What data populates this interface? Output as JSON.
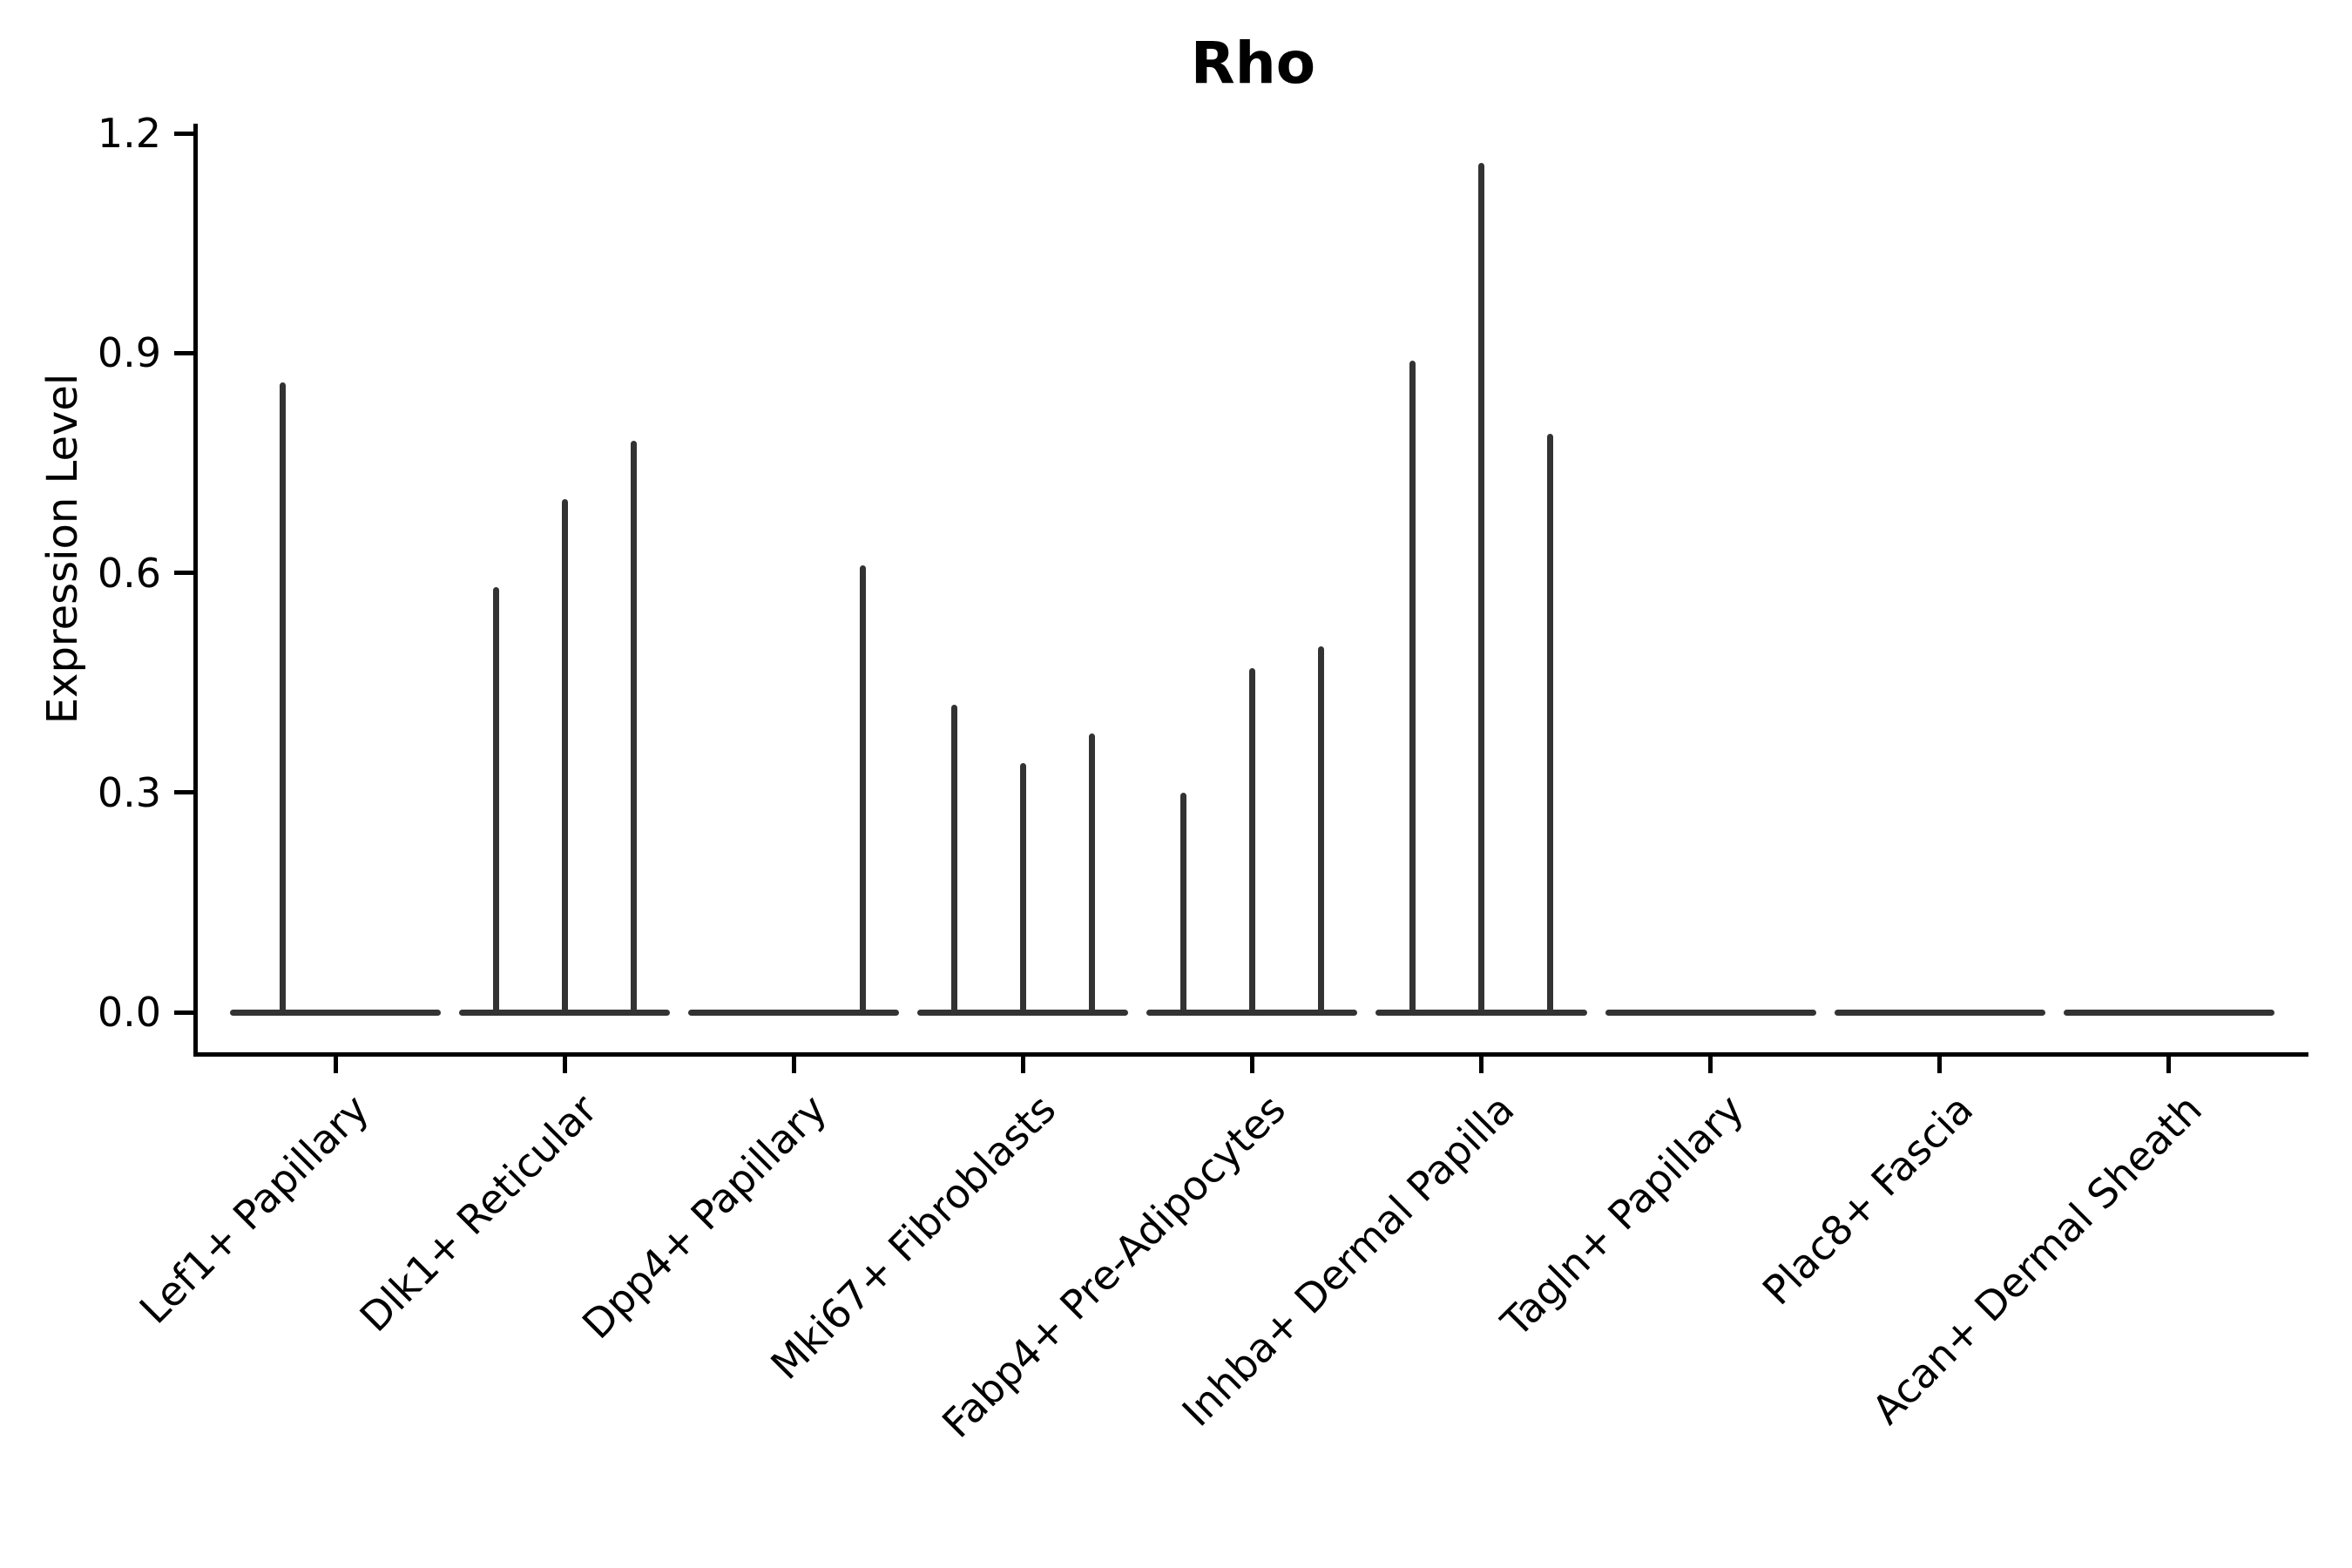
{
  "title": "Rho",
  "chart_data": {
    "type": "violin",
    "title": "Rho",
    "xlabel": "",
    "ylabel": "Expression Level",
    "ylim": [
      0.0,
      1.2
    ],
    "yticks": [
      0.0,
      0.3,
      0.6,
      0.9,
      1.2
    ],
    "ytick_labels": [
      "0.0",
      "0.3",
      "0.6",
      "0.9",
      "1.2"
    ],
    "grid": false,
    "legend_position": "none",
    "violin_color": "#333333",
    "axis_color": "#000000",
    "categories": [
      "Lef1+ Papillary",
      "Dlk1+ Reticular",
      "Dpp4+ Papillary",
      "Mki67+ Fibroblasts",
      "Fabp4+ Pre-Adipocytes",
      "Inhba+ Dermal Papilla",
      "Tagln+ Papillary",
      "Plac8+ Fascia",
      "Acan+ Dermal Sheath"
    ],
    "baseline_halfwidth": 0.46,
    "groups": [
      {
        "category": "Lef1+ Papillary",
        "spikes": [
          {
            "offset": -0.23,
            "max": 0.86
          }
        ]
      },
      {
        "category": "Dlk1+ Reticular",
        "spikes": [
          {
            "offset": -0.3,
            "max": 0.58
          },
          {
            "offset": 0.0,
            "max": 0.7
          },
          {
            "offset": 0.3,
            "max": 0.78
          }
        ]
      },
      {
        "category": "Dpp4+ Papillary",
        "spikes": [
          {
            "offset": 0.3,
            "max": 0.61
          }
        ]
      },
      {
        "category": "Mki67+ Fibroblasts",
        "spikes": [
          {
            "offset": -0.3,
            "max": 0.42
          },
          {
            "offset": 0.0,
            "max": 0.34
          },
          {
            "offset": 0.3,
            "max": 0.38
          }
        ]
      },
      {
        "category": "Fabp4+ Pre-Adipocytes",
        "spikes": [
          {
            "offset": -0.3,
            "max": 0.3
          },
          {
            "offset": 0.0,
            "max": 0.47
          },
          {
            "offset": 0.3,
            "max": 0.5
          }
        ]
      },
      {
        "category": "Inhba+ Dermal Papilla",
        "spikes": [
          {
            "offset": -0.3,
            "max": 0.89
          },
          {
            "offset": 0.0,
            "max": 1.16
          },
          {
            "offset": 0.3,
            "max": 0.79
          }
        ]
      },
      {
        "category": "Tagln+ Papillary",
        "spikes": []
      },
      {
        "category": "Plac8+ Fascia",
        "spikes": []
      },
      {
        "category": "Acan+ Dermal Sheath",
        "spikes": []
      }
    ]
  }
}
